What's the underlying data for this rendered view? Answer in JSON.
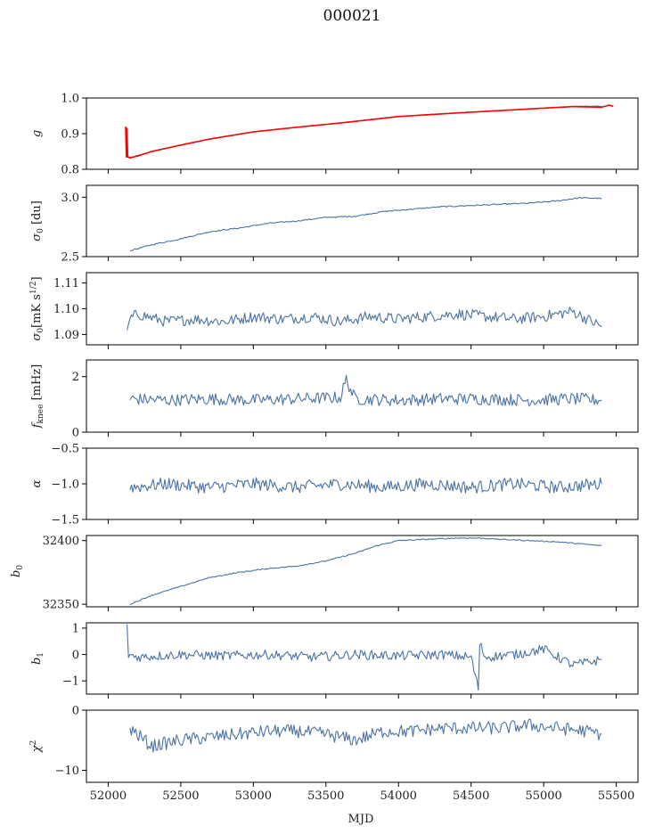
{
  "title": "000021",
  "xlabel": "MJD",
  "colors": {
    "series": "#4c72a4",
    "fit": "#ff0000",
    "axis": "#000000"
  },
  "chart_data": [
    {
      "type": "line",
      "ylabel": "g",
      "ylabel_main": "g",
      "ylabel_sub": "",
      "ylabel_sup": "",
      "ylim": [
        0.8,
        1.0
      ],
      "yticks": [
        0.8,
        0.9,
        1.0
      ],
      "ytick_labels": [
        "0.8",
        "0.9",
        "1.0"
      ],
      "series": [
        {
          "style": "blue",
          "x": [
            52120,
            52150,
            52200,
            52300,
            52500,
            52700,
            53000,
            53300,
            53600,
            54000,
            54400,
            54800,
            55200,
            55400
          ],
          "y": [
            0.835,
            0.833,
            0.838,
            0.85,
            0.868,
            0.885,
            0.905,
            0.918,
            0.93,
            0.948,
            0.958,
            0.967,
            0.976,
            0.977
          ]
        },
        {
          "style": "red",
          "x": [
            52120,
            52125,
            52128,
            52135,
            52150,
            52200,
            52300,
            52500,
            52700,
            53000,
            53300,
            53600,
            54000,
            54400,
            54800,
            55200,
            55400,
            55450,
            55480
          ],
          "y": [
            0.92,
            0.835,
            0.915,
            0.835,
            0.832,
            0.837,
            0.85,
            0.868,
            0.885,
            0.905,
            0.918,
            0.93,
            0.948,
            0.958,
            0.967,
            0.976,
            0.974,
            0.98,
            0.977
          ]
        }
      ]
    },
    {
      "type": "line",
      "ylabel": "σ0 [du]",
      "ylabel_main": "σ",
      "ylabel_sub": "0",
      "ylabel_sup": "",
      "ylabel_rest": " [du]",
      "ylim": [
        2.5,
        3.1
      ],
      "yticks": [
        2.5,
        3.0
      ],
      "ytick_labels": [
        "2.5",
        "3.0"
      ],
      "series": [
        {
          "style": "blue",
          "x": [
            52150,
            52300,
            52500,
            52700,
            52900,
            53100,
            53300,
            53500,
            53700,
            53900,
            54100,
            54300,
            54500,
            54700,
            54900,
            55100,
            55250,
            55400
          ],
          "y": [
            2.55,
            2.6,
            2.65,
            2.71,
            2.74,
            2.78,
            2.8,
            2.83,
            2.84,
            2.88,
            2.9,
            2.92,
            2.93,
            2.94,
            2.95,
            2.97,
            2.995,
            2.99
          ]
        }
      ]
    },
    {
      "type": "line",
      "ylabel": "σ0[mK s^1/2]",
      "ylabel_main": "σ",
      "ylabel_sub": "0",
      "ylabel_rest": "[mK s",
      "ylabel_sup": "1/2",
      "ylabel_end": "]",
      "ylim": [
        1.086,
        1.114
      ],
      "yticks": [
        1.09,
        1.1,
        1.11
      ],
      "ytick_labels": [
        "1.09",
        "1.10",
        "1.11"
      ],
      "series": [
        {
          "style": "blue",
          "x": [
            52130,
            52150,
            52200,
            52400,
            52600,
            52800,
            53000,
            53200,
            53400,
            53600,
            53800,
            54000,
            54200,
            54400,
            54600,
            54800,
            55000,
            55200,
            55300,
            55400
          ],
          "y": [
            1.09,
            1.096,
            1.098,
            1.095,
            1.096,
            1.095,
            1.097,
            1.096,
            1.097,
            1.095,
            1.097,
            1.096,
            1.097,
            1.098,
            1.097,
            1.096,
            1.097,
            1.099,
            1.096,
            1.093
          ]
        }
      ]
    },
    {
      "type": "line",
      "ylabel": "fknee [mHz]",
      "ylabel_main": "f",
      "ylabel_sub": "knee",
      "ylabel_rest": " [mHz]",
      "ylabel_sup": "",
      "ylim": [
        0,
        2.6
      ],
      "yticks": [
        0,
        2
      ],
      "ytick_labels": [
        "0",
        "2"
      ],
      "series": [
        {
          "style": "blue",
          "x": [
            52150,
            52400,
            52700,
            53000,
            53300,
            53600,
            53640,
            53700,
            54000,
            54300,
            54600,
            54900,
            55200,
            55400
          ],
          "y": [
            1.2,
            1.15,
            1.2,
            1.15,
            1.2,
            1.25,
            1.9,
            1.2,
            1.15,
            1.2,
            1.2,
            1.15,
            1.2,
            1.15
          ]
        }
      ]
    },
    {
      "type": "line",
      "ylabel": "α",
      "ylabel_main": "α",
      "ylabel_sub": "",
      "ylabel_sup": "",
      "ylim": [
        -1.5,
        -0.5
      ],
      "yticks": [
        -1.5,
        -1.0,
        -0.5
      ],
      "ytick_labels": [
        "−1.5",
        "−1.0",
        "−0.5"
      ],
      "series": [
        {
          "style": "blue",
          "x": [
            52150,
            52400,
            52700,
            53000,
            53300,
            53600,
            53900,
            54200,
            54500,
            54800,
            55100,
            55400
          ],
          "y": [
            -1.05,
            -1.0,
            -1.05,
            -1.0,
            -1.05,
            -1.0,
            -1.05,
            -1.0,
            -1.05,
            -1.0,
            -1.05,
            -1.0
          ]
        }
      ]
    },
    {
      "type": "line",
      "ylabel": "b0",
      "ylabel_main": "b",
      "ylabel_sub": "0",
      "ylabel_sup": "",
      "ylim": [
        32348,
        32404
      ],
      "yticks": [
        32350,
        32400
      ],
      "ytick_labels": [
        "32350",
        "32400"
      ],
      "series": [
        {
          "style": "blue",
          "x": [
            52150,
            52300,
            52500,
            52700,
            52900,
            53100,
            53300,
            53500,
            53700,
            53850,
            54000,
            54200,
            54400,
            54550,
            54700,
            54900,
            55100,
            55300,
            55400
          ],
          "y": [
            32350,
            32357,
            32364,
            32371,
            32375,
            32378,
            32380,
            32384,
            32390,
            32396,
            32400,
            32401,
            32402,
            32402,
            32401,
            32400,
            32399,
            32397,
            32396
          ]
        }
      ]
    },
    {
      "type": "line",
      "ylabel": "b1",
      "ylabel_main": "b",
      "ylabel_sub": "1",
      "ylabel_sup": "",
      "ylim": [
        -1.5,
        1.2
      ],
      "yticks": [
        -1,
        0,
        1
      ],
      "ytick_labels": [
        "−1",
        "0",
        "1"
      ],
      "series": [
        {
          "style": "blue",
          "x": [
            52130,
            52140,
            52200,
            52500,
            52800,
            53100,
            53400,
            53700,
            54000,
            54300,
            54500,
            54550,
            54560,
            54600,
            54800,
            55000,
            55200,
            55400
          ],
          "y": [
            1.0,
            0.0,
            -0.1,
            0.0,
            -0.05,
            0.0,
            -0.1,
            0.0,
            -0.05,
            0.0,
            -0.1,
            -1.3,
            0.4,
            -0.1,
            0.0,
            0.2,
            -0.4,
            -0.2
          ]
        }
      ]
    },
    {
      "type": "line",
      "ylabel": "χ2",
      "ylabel_main": "χ",
      "ylabel_sub": "",
      "ylabel_sup": "2",
      "ylim": [
        -12,
        0
      ],
      "yticks": [
        -10,
        0
      ],
      "ytick_labels": [
        "−10",
        "0"
      ],
      "series": [
        {
          "style": "blue",
          "x": [
            52150,
            52300,
            52500,
            52700,
            52900,
            53100,
            53300,
            53500,
            53700,
            53900,
            54100,
            54300,
            54500,
            54700,
            54900,
            55100,
            55300,
            55400
          ],
          "y": [
            -3,
            -6,
            -5,
            -4.5,
            -4,
            -3.5,
            -3.5,
            -4,
            -5,
            -3.5,
            -3.5,
            -3,
            -3,
            -3,
            -2.5,
            -3,
            -3.5,
            -4
          ]
        }
      ]
    }
  ],
  "xaxis": {
    "xlim": [
      51850,
      55650
    ],
    "xticks": [
      52000,
      52500,
      53000,
      53500,
      54000,
      54500,
      55000,
      55500
    ],
    "xtick_labels": [
      "52000",
      "52500",
      "53000",
      "53500",
      "54000",
      "54500",
      "55000",
      "55500"
    ]
  }
}
